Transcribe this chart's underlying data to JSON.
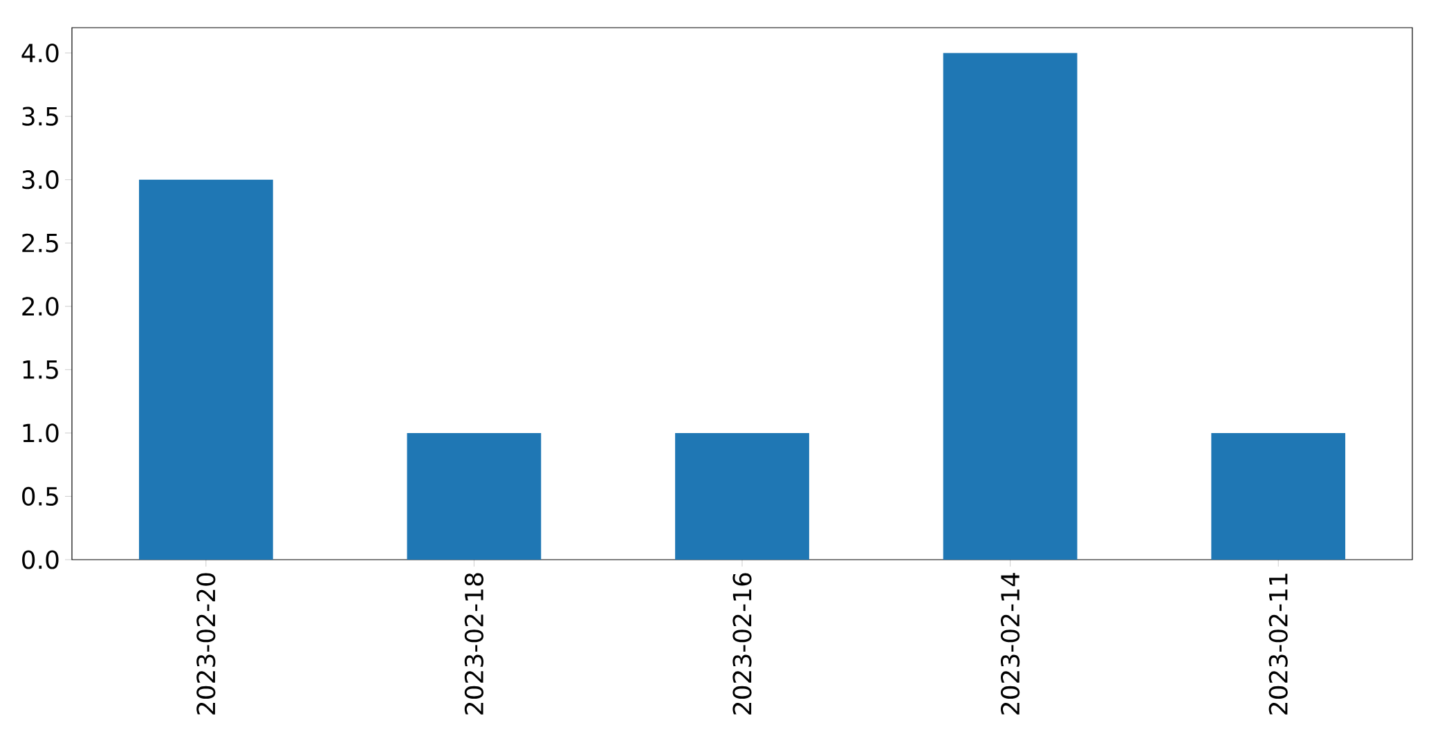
{
  "chart_data": {
    "type": "bar",
    "categories": [
      "2023-02-20",
      "2023-02-18",
      "2023-02-16",
      "2023-02-14",
      "2023-02-11"
    ],
    "values": [
      3,
      1,
      1,
      4,
      1
    ],
    "color": "#1f77b4",
    "ylim": [
      0,
      4.2
    ],
    "yticks": [
      {
        "value": 0,
        "label": "0.0"
      },
      {
        "value": 0.5,
        "label": "0.5"
      },
      {
        "value": 1,
        "label": "1.0"
      },
      {
        "value": 1.5,
        "label": "1.5"
      },
      {
        "value": 2,
        "label": "2.0"
      },
      {
        "value": 2.5,
        "label": "2.5"
      },
      {
        "value": 3,
        "label": "3.0"
      },
      {
        "value": 3.5,
        "label": "3.5"
      },
      {
        "value": 4,
        "label": "4.0"
      }
    ]
  }
}
